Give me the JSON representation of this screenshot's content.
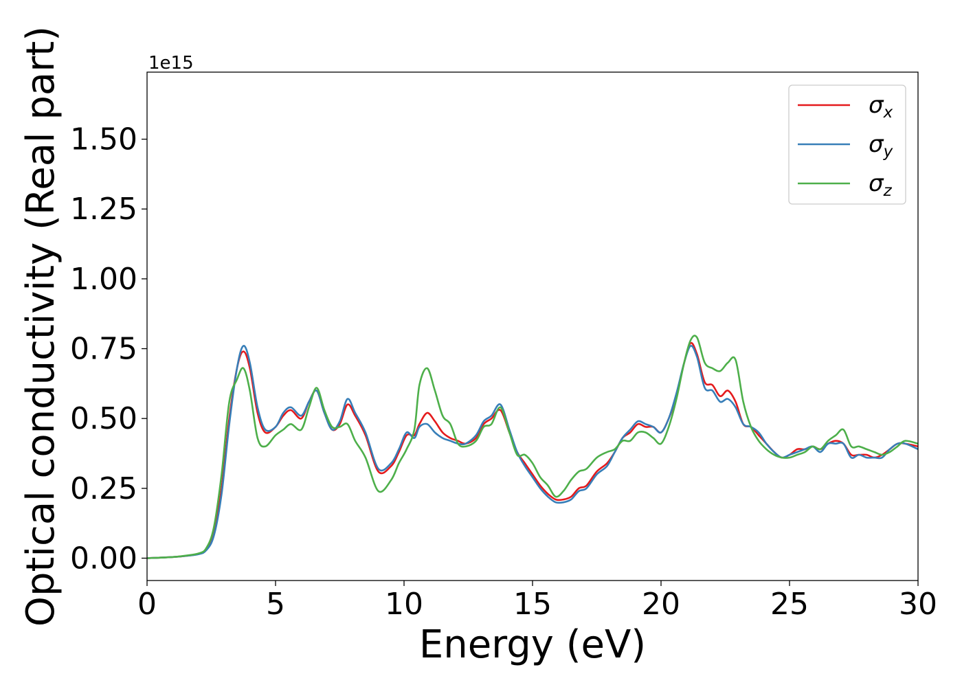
{
  "chart_data": {
    "type": "line",
    "xlabel": "Energy (eV)",
    "ylabel": "Optical conductivity (Real part)",
    "offset_text": "1e15",
    "xlim": [
      0,
      30
    ],
    "ylim": [
      -0.08,
      1.74
    ],
    "x_ticks": [
      0,
      5,
      10,
      15,
      20,
      25,
      30
    ],
    "x_tick_labels": [
      "0",
      "5",
      "10",
      "15",
      "20",
      "25",
      "30"
    ],
    "y_ticks": [
      0.0,
      0.25,
      0.5,
      0.75,
      1.0,
      1.25,
      1.5
    ],
    "y_tick_labels": [
      "0.00",
      "0.25",
      "0.50",
      "0.75",
      "1.00",
      "1.25",
      "1.50"
    ],
    "grid": false,
    "legend_position": "top-right",
    "series": [
      {
        "name": "σx",
        "symbol": "σ",
        "subscript": "x",
        "color": "#e41a1c",
        "x": [
          0,
          1,
          1.5,
          2,
          2.3,
          2.6,
          2.9,
          3.2,
          3.5,
          3.75,
          4,
          4.3,
          4.6,
          5,
          5.3,
          5.6,
          6,
          6.3,
          6.6,
          6.9,
          7.2,
          7.5,
          7.8,
          8.1,
          8.5,
          9,
          9.5,
          9.8,
          10.1,
          10.4,
          10.6,
          10.9,
          11.2,
          11.5,
          11.8,
          12.1,
          12.4,
          12.8,
          13.1,
          13.4,
          13.75,
          14.1,
          14.4,
          14.7,
          15,
          15.3,
          15.6,
          15.9,
          16.2,
          16.5,
          16.8,
          17.1,
          17.5,
          17.9,
          18.2,
          18.5,
          18.8,
          19.1,
          19.4,
          19.7,
          20,
          20.3,
          20.6,
          20.9,
          21.15,
          21.4,
          21.7,
          22,
          22.3,
          22.6,
          22.9,
          23.2,
          23.5,
          23.8,
          24.1,
          24.4,
          24.7,
          25,
          25.3,
          25.6,
          25.9,
          26.2,
          26.5,
          26.8,
          27.1,
          27.4,
          27.7,
          28,
          28.3,
          28.6,
          28.9,
          29.2,
          29.5,
          30
        ],
        "y": [
          0,
          0.004,
          0.008,
          0.015,
          0.03,
          0.09,
          0.25,
          0.5,
          0.68,
          0.74,
          0.68,
          0.52,
          0.45,
          0.47,
          0.51,
          0.53,
          0.5,
          0.56,
          0.6,
          0.52,
          0.46,
          0.48,
          0.55,
          0.51,
          0.44,
          0.31,
          0.33,
          0.38,
          0.44,
          0.44,
          0.48,
          0.52,
          0.49,
          0.45,
          0.43,
          0.42,
          0.41,
          0.43,
          0.48,
          0.5,
          0.53,
          0.45,
          0.38,
          0.34,
          0.3,
          0.26,
          0.23,
          0.21,
          0.21,
          0.22,
          0.25,
          0.26,
          0.31,
          0.34,
          0.38,
          0.43,
          0.45,
          0.48,
          0.47,
          0.47,
          0.45,
          0.5,
          0.58,
          0.7,
          0.77,
          0.73,
          0.63,
          0.62,
          0.58,
          0.6,
          0.56,
          0.48,
          0.47,
          0.44,
          0.41,
          0.38,
          0.36,
          0.37,
          0.39,
          0.39,
          0.4,
          0.39,
          0.41,
          0.42,
          0.41,
          0.37,
          0.37,
          0.37,
          0.36,
          0.37,
          0.39,
          0.41,
          0.41,
          0.4
        ]
      },
      {
        "name": "σy",
        "symbol": "σ",
        "subscript": "y",
        "color": "#377eb8",
        "x": [
          0,
          1,
          1.5,
          2,
          2.3,
          2.6,
          2.9,
          3.2,
          3.5,
          3.75,
          4,
          4.3,
          4.6,
          5,
          5.3,
          5.6,
          6,
          6.3,
          6.6,
          6.9,
          7.2,
          7.5,
          7.8,
          8.1,
          8.5,
          9,
          9.5,
          9.8,
          10.1,
          10.4,
          10.6,
          10.9,
          11.2,
          11.5,
          11.8,
          12.1,
          12.4,
          12.8,
          13.1,
          13.4,
          13.75,
          14.1,
          14.4,
          14.7,
          15,
          15.3,
          15.6,
          15.9,
          16.2,
          16.5,
          16.8,
          17.1,
          17.5,
          17.9,
          18.2,
          18.5,
          18.8,
          19.1,
          19.4,
          19.7,
          20,
          20.3,
          20.6,
          20.9,
          21.15,
          21.4,
          21.7,
          22,
          22.3,
          22.6,
          22.9,
          23.2,
          23.5,
          23.8,
          24.1,
          24.4,
          24.7,
          25,
          25.3,
          25.6,
          25.9,
          26.2,
          26.5,
          26.8,
          27.1,
          27.4,
          27.7,
          28,
          28.3,
          28.6,
          28.9,
          29.2,
          29.5,
          30
        ],
        "y": [
          0,
          0.004,
          0.008,
          0.014,
          0.028,
          0.08,
          0.23,
          0.48,
          0.68,
          0.76,
          0.7,
          0.54,
          0.46,
          0.47,
          0.52,
          0.54,
          0.51,
          0.56,
          0.6,
          0.52,
          0.46,
          0.49,
          0.57,
          0.52,
          0.45,
          0.32,
          0.34,
          0.39,
          0.45,
          0.43,
          0.47,
          0.48,
          0.45,
          0.43,
          0.42,
          0.41,
          0.41,
          0.44,
          0.49,
          0.51,
          0.55,
          0.46,
          0.38,
          0.33,
          0.29,
          0.25,
          0.22,
          0.2,
          0.2,
          0.21,
          0.24,
          0.25,
          0.3,
          0.33,
          0.38,
          0.43,
          0.46,
          0.49,
          0.48,
          0.47,
          0.45,
          0.5,
          0.59,
          0.7,
          0.76,
          0.72,
          0.61,
          0.6,
          0.56,
          0.57,
          0.54,
          0.48,
          0.47,
          0.45,
          0.41,
          0.38,
          0.36,
          0.37,
          0.38,
          0.39,
          0.4,
          0.38,
          0.41,
          0.41,
          0.41,
          0.36,
          0.37,
          0.36,
          0.36,
          0.36,
          0.39,
          0.41,
          0.41,
          0.39
        ]
      },
      {
        "name": "σz",
        "symbol": "σ",
        "subscript": "z",
        "color": "#4daf4a",
        "x": [
          0,
          1,
          1.5,
          2,
          2.3,
          2.6,
          2.9,
          3.2,
          3.5,
          3.75,
          4,
          4.3,
          4.6,
          5,
          5.3,
          5.6,
          6,
          6.3,
          6.6,
          6.9,
          7.2,
          7.5,
          7.8,
          8.1,
          8.5,
          9,
          9.5,
          9.8,
          10.1,
          10.4,
          10.6,
          10.9,
          11.2,
          11.5,
          11.8,
          12.1,
          12.4,
          12.8,
          13.1,
          13.4,
          13.75,
          14.1,
          14.4,
          14.7,
          15,
          15.3,
          15.6,
          15.9,
          16.2,
          16.5,
          16.8,
          17.1,
          17.5,
          17.9,
          18.2,
          18.5,
          18.8,
          19.1,
          19.4,
          19.7,
          20,
          20.3,
          20.6,
          20.9,
          21.15,
          21.4,
          21.7,
          22,
          22.3,
          22.6,
          22.9,
          23.2,
          23.5,
          23.8,
          24.1,
          24.4,
          24.7,
          25,
          25.3,
          25.6,
          25.9,
          26.2,
          26.5,
          26.8,
          27.1,
          27.4,
          27.7,
          28,
          28.3,
          28.6,
          28.9,
          29.2,
          29.5,
          30
        ],
        "y": [
          0,
          0.004,
          0.009,
          0.017,
          0.035,
          0.11,
          0.3,
          0.56,
          0.64,
          0.68,
          0.6,
          0.43,
          0.4,
          0.44,
          0.46,
          0.48,
          0.46,
          0.54,
          0.61,
          0.53,
          0.47,
          0.47,
          0.48,
          0.42,
          0.36,
          0.24,
          0.28,
          0.34,
          0.39,
          0.46,
          0.62,
          0.68,
          0.6,
          0.51,
          0.48,
          0.41,
          0.4,
          0.42,
          0.47,
          0.48,
          0.54,
          0.45,
          0.37,
          0.37,
          0.34,
          0.29,
          0.26,
          0.22,
          0.24,
          0.28,
          0.31,
          0.32,
          0.36,
          0.38,
          0.39,
          0.42,
          0.42,
          0.45,
          0.45,
          0.43,
          0.41,
          0.47,
          0.57,
          0.7,
          0.78,
          0.79,
          0.7,
          0.68,
          0.67,
          0.7,
          0.71,
          0.56,
          0.47,
          0.42,
          0.39,
          0.37,
          0.36,
          0.36,
          0.37,
          0.38,
          0.4,
          0.39,
          0.42,
          0.44,
          0.46,
          0.4,
          0.4,
          0.39,
          0.38,
          0.37,
          0.38,
          0.4,
          0.42,
          0.41
        ]
      }
    ]
  }
}
